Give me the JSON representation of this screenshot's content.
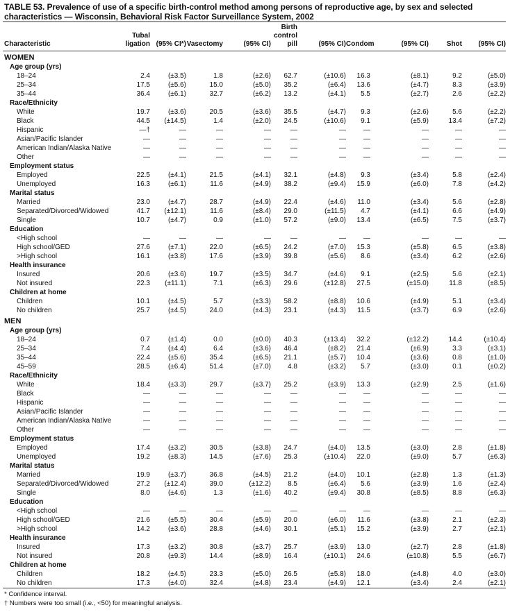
{
  "title": "TABLE 53. Prevalence of use of a specific birth-control method among persons of reproductive age, by sex and selected characteristics — Wisconsin, Behavioral Risk Factor Surveillance System, 2002",
  "columns": [
    "Characteristic",
    "Tubal ligation",
    "(95% CI*)",
    "Vasectomy",
    "(95% CI)",
    "Birth control pill",
    "(95% CI)",
    "Condom",
    "(95% CI)",
    "Shot",
    "(95% CI)"
  ],
  "sections": [
    {
      "label": "WOMEN",
      "groups": [
        {
          "label": "Age group (yrs)",
          "rows": [
            {
              "label": "18–24",
              "values": [
                "2.4",
                "(±3.5)",
                "1.8",
                "(±2.6)",
                "62.7",
                "(±10.6)",
                "16.3",
                "(±8.1)",
                "9.2",
                "(±5.0)"
              ]
            },
            {
              "label": "25–34",
              "values": [
                "17.5",
                "(±5.6)",
                "15.0",
                "(±5.0)",
                "35.2",
                "(±6.4)",
                "13.6",
                "(±4.7)",
                "8.3",
                "(±3.9)"
              ]
            },
            {
              "label": "35–44",
              "values": [
                "36.4",
                "(±6.1)",
                "32.7",
                "(±6.2)",
                "13.2",
                "(±4.1)",
                "5.5",
                "(±2.7)",
                "2.6",
                "(±2.2)"
              ]
            }
          ]
        },
        {
          "label": "Race/Ethnicity",
          "rows": [
            {
              "label": "White",
              "values": [
                "19.7",
                "(±3.6)",
                "20.5",
                "(±3.6)",
                "35.5",
                "(±4.7)",
                "9.3",
                "(±2.6)",
                "5.6",
                "(±2.2)"
              ]
            },
            {
              "label": "Black",
              "values": [
                "44.5",
                "(±14.5)",
                "1.4",
                "(±2.0)",
                "24.5",
                "(±10.6)",
                "9.1",
                "(±5.9)",
                "13.4",
                "(±7.2)"
              ]
            },
            {
              "label": "Hispanic",
              "values": [
                "—†",
                "—",
                "—",
                "—",
                "—",
                "—",
                "—",
                "—",
                "—",
                "—"
              ]
            },
            {
              "label": "Asian/Pacific Islander",
              "values": [
                "—",
                "—",
                "—",
                "—",
                "—",
                "—",
                "—",
                "—",
                "—",
                "—"
              ]
            },
            {
              "label": "American Indian/Alaska Native",
              "values": [
                "—",
                "—",
                "—",
                "—",
                "—",
                "—",
                "—",
                "—",
                "—",
                "—"
              ]
            },
            {
              "label": "Other",
              "values": [
                "—",
                "—",
                "—",
                "—",
                "—",
                "—",
                "—",
                "—",
                "—",
                "—"
              ]
            }
          ]
        },
        {
          "label": "Employment status",
          "rows": [
            {
              "label": "Employed",
              "values": [
                "22.5",
                "(±4.1)",
                "21.5",
                "(±4.1)",
                "32.1",
                "(±4.8)",
                "9.3",
                "(±3.4)",
                "5.8",
                "(±2.4)"
              ]
            },
            {
              "label": "Unemployed",
              "values": [
                "16.3",
                "(±6.1)",
                "11.6",
                "(±4.9)",
                "38.2",
                "(±9.4)",
                "15.9",
                "(±6.0)",
                "7.8",
                "(±4.2)"
              ]
            }
          ]
        },
        {
          "label": "Marital status",
          "rows": [
            {
              "label": "Married",
              "values": [
                "23.0",
                "(±4.7)",
                "28.7",
                "(±4.9)",
                "22.4",
                "(±4.6)",
                "11.0",
                "(±3.4)",
                "5.6",
                "(±2.8)"
              ]
            },
            {
              "label": "Separated/Divorced/Widowed",
              "values": [
                "41.7",
                "(±12.1)",
                "11.6",
                "(±8.4)",
                "29.0",
                "(±11.5)",
                "4.7",
                "(±4.1)",
                "6.6",
                "(±4.9)"
              ]
            },
            {
              "label": "Single",
              "values": [
                "10.7",
                "(±4.7)",
                "0.9",
                "(±1.0)",
                "57.2",
                "(±9.0)",
                "13.4",
                "(±6.5)",
                "7.5",
                "(±3.7)"
              ]
            }
          ]
        },
        {
          "label": "Education",
          "rows": [
            {
              "label": "<High school",
              "values": [
                "—",
                "—",
                "—",
                "—",
                "—",
                "—",
                "—",
                "—",
                "—",
                "—"
              ]
            },
            {
              "label": "High school/GED",
              "values": [
                "27.6",
                "(±7.1)",
                "22.0",
                "(±6.5)",
                "24.2",
                "(±7.0)",
                "15.3",
                "(±5.8)",
                "6.5",
                "(±3.8)"
              ]
            },
            {
              "label": ">High school",
              "values": [
                "16.1",
                "(±3.8)",
                "17.6",
                "(±3.9)",
                "39.8",
                "(±5.6)",
                "8.6",
                "(±3.4)",
                "6.2",
                "(±2.6)"
              ]
            }
          ]
        },
        {
          "label": "Health insurance",
          "rows": [
            {
              "label": "Insured",
              "values": [
                "20.6",
                "(±3.6)",
                "19.7",
                "(±3.5)",
                "34.7",
                "(±4.6)",
                "9.1",
                "(±2.5)",
                "5.6",
                "(±2.1)"
              ]
            },
            {
              "label": "Not insured",
              "values": [
                "22.3",
                "(±11.1)",
                "7.1",
                "(±6.3)",
                "29.6",
                "(±12.8)",
                "27.5",
                "(±15.0)",
                "11.8",
                "(±8.5)"
              ]
            }
          ]
        },
        {
          "label": "Children at home",
          "rows": [
            {
              "label": "Children",
              "values": [
                "10.1",
                "(±4.5)",
                "5.7",
                "(±3.3)",
                "58.2",
                "(±8.8)",
                "10.6",
                "(±4.9)",
                "5.1",
                "(±3.4)"
              ]
            },
            {
              "label": "No children",
              "values": [
                "25.7",
                "(±4.5)",
                "24.0",
                "(±4.3)",
                "23.1",
                "(±4.3)",
                "11.5",
                "(±3.7)",
                "6.9",
                "(±2.6)"
              ]
            }
          ]
        }
      ]
    },
    {
      "label": "MEN",
      "groups": [
        {
          "label": "Age group (yrs)",
          "rows": [
            {
              "label": "18–24",
              "values": [
                "0.7",
                "(±1.4)",
                "0.0",
                "(±0.0)",
                "40.3",
                "(±13.4)",
                "32.2",
                "(±12.2)",
                "14.4",
                "(±10.4)"
              ]
            },
            {
              "label": "25–34",
              "values": [
                "7.4",
                "(±4.4)",
                "6.4",
                "(±3.6)",
                "46.4",
                "(±8.2)",
                "21.4",
                "(±6.9)",
                "3.3",
                "(±3.1)"
              ]
            },
            {
              "label": "35–44",
              "values": [
                "22.4",
                "(±5.6)",
                "35.4",
                "(±6.5)",
                "21.1",
                "(±5.7)",
                "10.4",
                "(±3.6)",
                "0.8",
                "(±1.0)"
              ]
            },
            {
              "label": "45–59",
              "values": [
                "28.5",
                "(±6.4)",
                "51.4",
                "(±7.0)",
                "4.8",
                "(±3.2)",
                "5.7",
                "(±3.0)",
                "0.1",
                "(±0.2)"
              ]
            }
          ]
        },
        {
          "label": "Race/Ethnicity",
          "rows": [
            {
              "label": "White",
              "values": [
                "18.4",
                "(±3.3)",
                "29.7",
                "(±3.7)",
                "25.2",
                "(±3.9)",
                "13.3",
                "(±2.9)",
                "2.5",
                "(±1.6)"
              ]
            },
            {
              "label": "Black",
              "values": [
                "—",
                "—",
                "—",
                "—",
                "—",
                "—",
                "—",
                "—",
                "—",
                "—"
              ]
            },
            {
              "label": "Hispanic",
              "values": [
                "—",
                "—",
                "—",
                "—",
                "—",
                "—",
                "—",
                "—",
                "—",
                "—"
              ]
            },
            {
              "label": "Asian/Pacific Islander",
              "values": [
                "—",
                "—",
                "—",
                "—",
                "—",
                "—",
                "—",
                "—",
                "—",
                "—"
              ]
            },
            {
              "label": "American Indian/Alaska Native",
              "values": [
                "—",
                "—",
                "—",
                "—",
                "—",
                "—",
                "—",
                "—",
                "—",
                "—"
              ]
            },
            {
              "label": "Other",
              "values": [
                "—",
                "—",
                "—",
                "—",
                "—",
                "—",
                "—",
                "—",
                "—",
                "—"
              ]
            }
          ]
        },
        {
          "label": "Employment status",
          "rows": [
            {
              "label": "Employed",
              "values": [
                "17.4",
                "(±3.2)",
                "30.5",
                "(±3.8)",
                "24.7",
                "(±4.0)",
                "13.5",
                "(±3.0)",
                "2.8",
                "(±1.8)"
              ]
            },
            {
              "label": "Unemployed",
              "values": [
                "19.2",
                "(±8.3)",
                "14.5",
                "(±7.6)",
                "25.3",
                "(±10.4)",
                "22.0",
                "(±9.0)",
                "5.7",
                "(±6.3)"
              ]
            }
          ]
        },
        {
          "label": "Marital status",
          "rows": [
            {
              "label": "Married",
              "values": [
                "19.9",
                "(±3.7)",
                "36.8",
                "(±4.5)",
                "21.2",
                "(±4.0)",
                "10.1",
                "(±2.8)",
                "1.3",
                "(±1.3)"
              ]
            },
            {
              "label": "Separated/Divorced/Widowed",
              "values": [
                "27.2",
                "(±12.4)",
                "39.0",
                "(±12.2)",
                "8.5",
                "(±6.4)",
                "5.6",
                "(±3.9)",
                "1.6",
                "(±2.4)"
              ]
            },
            {
              "label": "Single",
              "values": [
                "8.0",
                "(±4.6)",
                "1.3",
                "(±1.6)",
                "40.2",
                "(±9.4)",
                "30.8",
                "(±8.5)",
                "8.8",
                "(±6.3)"
              ]
            }
          ]
        },
        {
          "label": "Education",
          "rows": [
            {
              "label": "<High school",
              "values": [
                "—",
                "—",
                "—",
                "—",
                "—",
                "—",
                "—",
                "—",
                "—",
                "—"
              ]
            },
            {
              "label": "High school/GED",
              "values": [
                "21.6",
                "(±5.5)",
                "30.4",
                "(±5.9)",
                "20.0",
                "(±6.0)",
                "11.6",
                "(±3.8)",
                "2.1",
                "(±2.3)"
              ]
            },
            {
              "label": ">High school",
              "values": [
                "14.2",
                "(±3.6)",
                "28.8",
                "(±4.6)",
                "30.1",
                "(±5.1)",
                "15.2",
                "(±3.9)",
                "2.7",
                "(±2.1)"
              ]
            }
          ]
        },
        {
          "label": "Health insurance",
          "rows": [
            {
              "label": "Insured",
              "values": [
                "17.3",
                "(±3.2)",
                "30.8",
                "(±3.7)",
                "25.7",
                "(±3.9)",
                "13.0",
                "(±2.7)",
                "2.8",
                "(±1.8)"
              ]
            },
            {
              "label": "Not insured",
              "values": [
                "20.8",
                "(±9.3)",
                "14.4",
                "(±8.9)",
                "16.4",
                "(±10.1)",
                "24.6",
                "(±10.8)",
                "5.5",
                "(±6.7)"
              ]
            }
          ]
        },
        {
          "label": "Children at home",
          "rows": [
            {
              "label": "Children",
              "values": [
                "18.2",
                "(±4.5)",
                "23.3",
                "(±5.0)",
                "26.5",
                "(±5.8)",
                "18.0",
                "(±4.8)",
                "4.0",
                "(±3.0)"
              ]
            },
            {
              "label": "No children",
              "values": [
                "17.3",
                "(±4.0)",
                "32.4",
                "(±4.8)",
                "23.4",
                "(±4.9)",
                "12.1",
                "(±3.4)",
                "2.4",
                "(±2.1)"
              ]
            }
          ]
        }
      ]
    }
  ],
  "footnotes": [
    "* Confidence interval.",
    "† Numbers were too small (i.e., <50) for meaningful analysis."
  ]
}
